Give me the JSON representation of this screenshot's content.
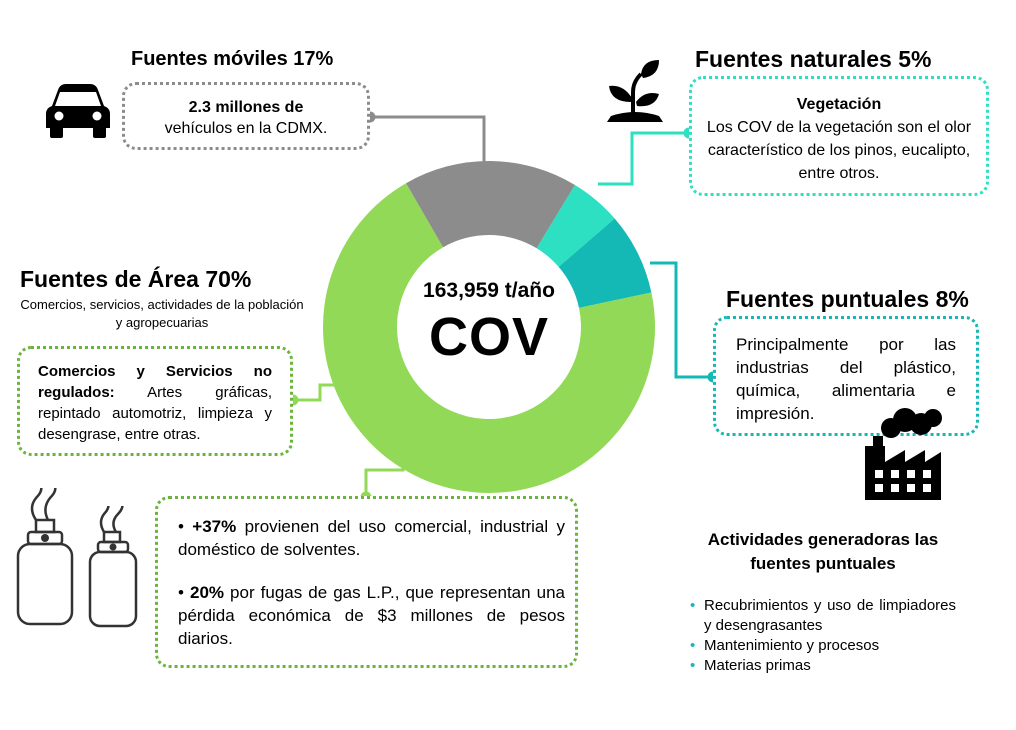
{
  "chart_data": {
    "type": "pie",
    "style": "donut",
    "center_value": "163,959 t/año",
    "center_label": "COV",
    "slices": [
      {
        "label": "Fuentes móviles",
        "value": 17,
        "color": "#8c8c8c"
      },
      {
        "label": "Fuentes naturales",
        "value": 5,
        "color": "#2ee0c2"
      },
      {
        "label": "Fuentes puntuales",
        "value": 8,
        "color": "#14b8b5"
      },
      {
        "label": "Fuentes de Área",
        "value": 70,
        "color": "#92d957"
      }
    ]
  },
  "moviles": {
    "title": "Fuentes móviles 17%",
    "line1": "2.3 millones de",
    "line2": "vehículos en la CDMX."
  },
  "naturales": {
    "title": "Fuentes naturales 5%",
    "heading": "Vegetación",
    "text": "Los COV de la vegetación son el olor característico de los pinos, eucalipto, entre otros."
  },
  "puntuales": {
    "title": "Fuentes puntuales 8%",
    "text": "Principalmente por las industrias del plástico, química, alimentaria e impresión."
  },
  "area": {
    "title": "Fuentes de Área 70%",
    "subtitle": "Comercios, servicios, actividades de la población y agropecuarias",
    "box_bold": "Comercios y Servicios no regulados:",
    "box_text": " Artes gráficas, repintado automotriz, limpieza y desengrase, entre otras.",
    "bullet1_bold": "+37%",
    "bullet1_text": " provienen del uso comercial, industrial y doméstico de solventes.",
    "bullet2_bold": "20%",
    "bullet2_text": " por fugas de gas L.P., que representan una pérdida económica de $3 millones de pesos diarios."
  },
  "actividades": {
    "heading": "Actividades generadoras las fuentes puntuales",
    "items": [
      "Recubrimientos y uso de limpiadores y desengrasantes",
      "Mantenimiento y procesos",
      "Materias primas"
    ]
  },
  "colors": {
    "gray": "#8c8c8c",
    "cyan_light": "#2ee0c2",
    "cyan_dark": "#14b8b5",
    "green": "#92d957",
    "green_dark": "#6ab43c"
  }
}
